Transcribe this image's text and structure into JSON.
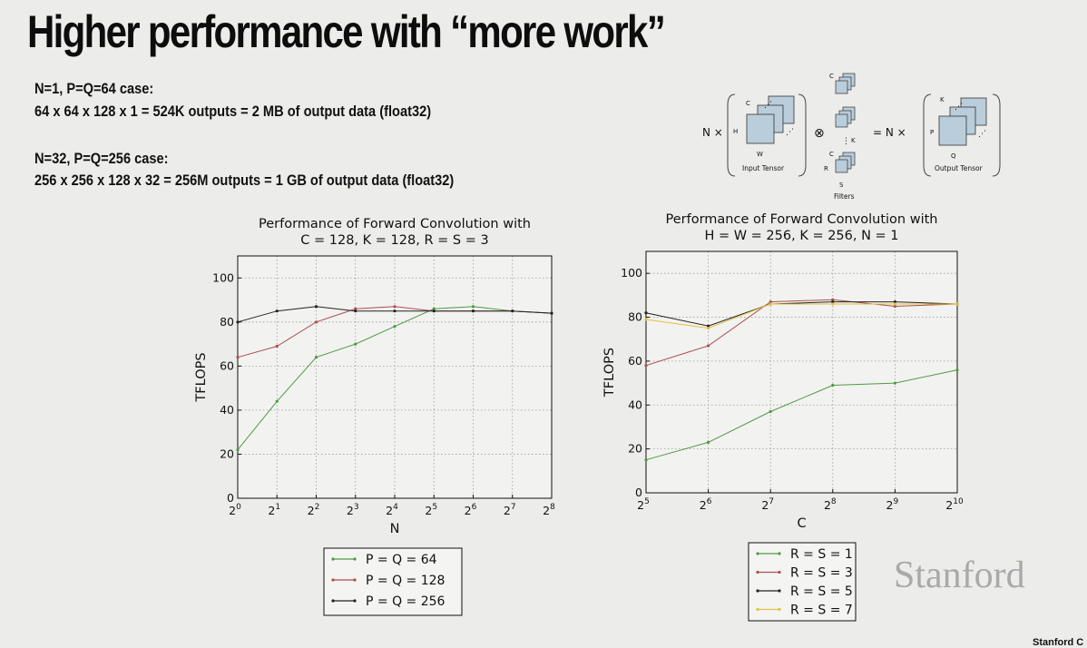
{
  "slide": {
    "title": "Higher performance with “more work”",
    "case1_heading": "N=1, P=Q=64 case:",
    "case1_detail": "64 x 64 x 128 x 1 = 524K outputs = 2 MB of output data (float32)",
    "case2_heading": "N=32, P=Q=256 case:",
    "case2_detail": "256 x 256 x 128 x 32 = 256M outputs = 1 GB of output data (float32)",
    "logo": "Stanford",
    "footer": "Stanford C"
  },
  "diagram": {
    "n_times_left": "N ×",
    "input_c": "C",
    "input_h": "H",
    "input_w": "W",
    "input_caption": "Input Tensor",
    "conv_op": "⊗",
    "filter_c_top": "C",
    "filter_k": "K",
    "filter_c_bottom": "C",
    "filter_r": "R",
    "filter_s": "S",
    "filters_caption": "Filters",
    "equals_n": "= N ×",
    "output_k": "K",
    "output_p": "P",
    "output_q": "Q",
    "output_caption": "Output Tensor"
  },
  "chart_data": [
    {
      "type": "line",
      "title": "Performance of Forward Convolution with",
      "subtitle": "C = 128, K = 128, R = S = 3",
      "xlabel": "N",
      "ylabel": "TFLOPS",
      "x_ticks": [
        "0",
        "1",
        "2",
        "3",
        "4",
        "5",
        "6",
        "7",
        "8"
      ],
      "x_tick_base": "2",
      "y_ticks": [
        "0",
        "20",
        "40",
        "60",
        "80",
        "100"
      ],
      "ylim": [
        0,
        110
      ],
      "x": [
        1,
        2,
        4,
        8,
        16,
        32,
        64,
        128,
        256
      ],
      "x_scale": "log2",
      "grid": true,
      "legend_position": "bottom",
      "series": [
        {
          "name": "P = Q = 64",
          "color": "#4e9a45",
          "values": [
            22,
            44,
            64,
            70,
            78,
            86,
            87,
            85,
            84
          ]
        },
        {
          "name": "P = Q = 128",
          "color": "#a8504f",
          "values": [
            64,
            69,
            80,
            86,
            87,
            85,
            85,
            85,
            84
          ]
        },
        {
          "name": "P = Q = 256",
          "color": "#222222",
          "values": [
            80,
            85,
            87,
            85,
            85,
            85,
            85,
            85,
            84
          ]
        }
      ]
    },
    {
      "type": "line",
      "title": "Performance of Forward Convolution with",
      "subtitle": "H = W = 256, K = 256, N = 1",
      "xlabel": "C",
      "ylabel": "TFLOPS",
      "x_ticks": [
        "5",
        "6",
        "7",
        "8",
        "9",
        "10"
      ],
      "x_tick_base": "2",
      "y_ticks": [
        "0",
        "20",
        "40",
        "60",
        "80",
        "100"
      ],
      "ylim": [
        0,
        110
      ],
      "x": [
        32,
        64,
        128,
        256,
        512,
        1024
      ],
      "x_scale": "log2",
      "grid": true,
      "legend_position": "bottom",
      "series": [
        {
          "name": "R = S = 1",
          "color": "#4e9a45",
          "values": [
            15,
            23,
            37,
            49,
            50,
            56
          ]
        },
        {
          "name": "R = S = 3",
          "color": "#a8504f",
          "values": [
            58,
            67,
            87,
            88,
            85,
            86
          ]
        },
        {
          "name": "R = S = 5",
          "color": "#222222",
          "values": [
            82,
            76,
            86,
            87,
            87,
            86
          ]
        },
        {
          "name": "R = S = 7",
          "color": "#e0c240",
          "values": [
            79,
            75,
            86,
            86,
            86,
            86
          ]
        }
      ]
    }
  ]
}
